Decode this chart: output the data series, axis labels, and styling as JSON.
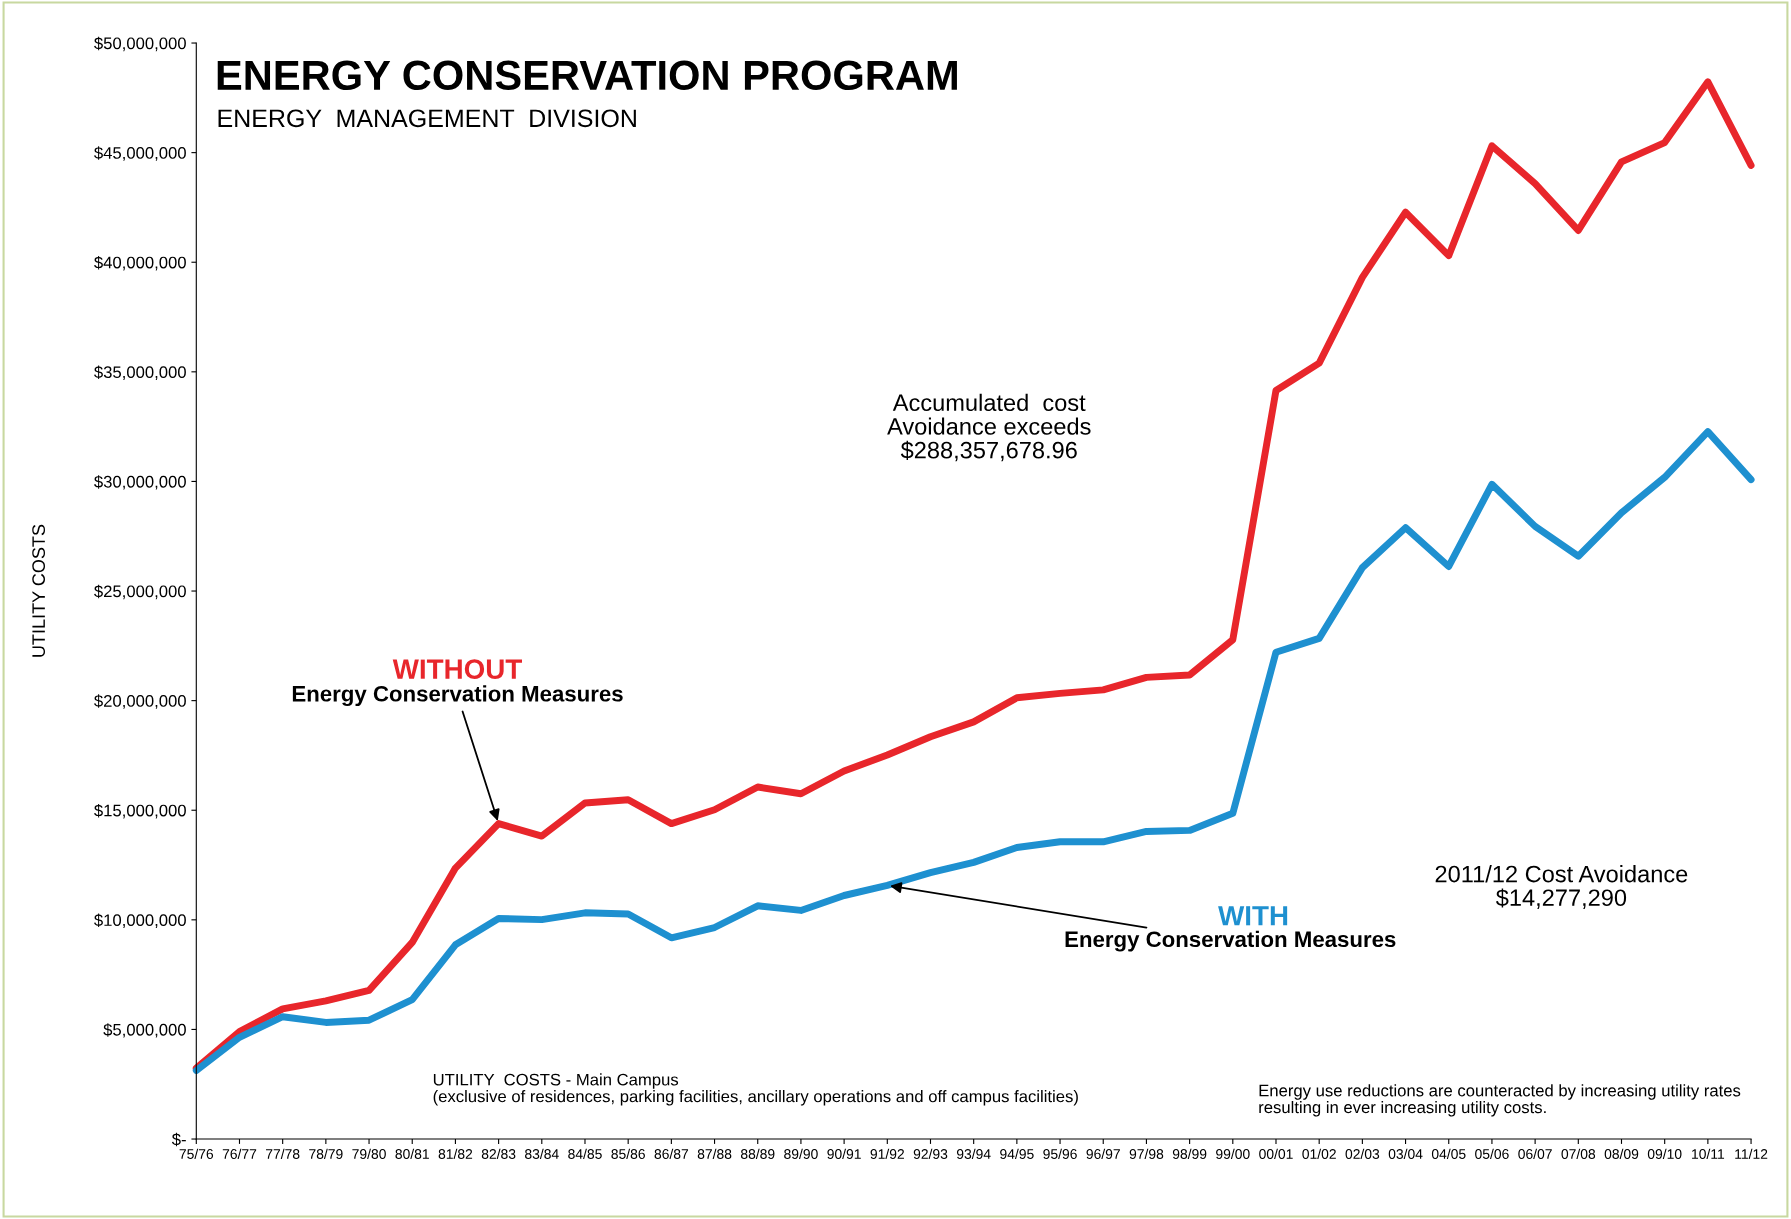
{
  "chart_data": {
    "type": "line",
    "title": "ENERGY CONSERVATION PROGRAM",
    "subtitle": "ENERGY  MANAGEMENT  DIVISION",
    "ylabel": "UTILITY COSTS",
    "categories": [
      "75/76",
      "76/77",
      "77/78",
      "78/79",
      "79/80",
      "80/81",
      "81/82",
      "82/83",
      "83/84",
      "84/85",
      "85/86",
      "86/87",
      "87/88",
      "88/89",
      "89/90",
      "90/91",
      "91/92",
      "92/93",
      "93/94",
      "94/95",
      "95/96",
      "96/97",
      "97/98",
      "98/99",
      "99/00",
      "00/01",
      "01/02",
      "02/03",
      "03/04",
      "04/05",
      "05/06",
      "06/07",
      "07/08",
      "08/09",
      "09/10",
      "10/11",
      "11/12"
    ],
    "series": [
      {
        "name": "WITHOUT",
        "color": "#e8262b",
        "values": [
          3230000,
          4900000,
          5940000,
          6300000,
          6780000,
          8970000,
          12360000,
          14390000,
          13820000,
          15330000,
          15480000,
          14390000,
          15020000,
          16060000,
          15750000,
          16790000,
          17520000,
          18350000,
          19030000,
          20130000,
          20330000,
          20490000,
          21060000,
          21170000,
          22780000,
          34150000,
          35400000,
          39310000,
          42280000,
          40300000,
          45310000,
          43590000,
          41450000,
          44580000,
          45460000,
          48230000,
          44420000
        ]
      },
      {
        "name": "WITH",
        "color": "#1e90d0",
        "values": [
          3130000,
          4640000,
          5580000,
          5320000,
          5420000,
          6360000,
          8860000,
          10060000,
          10010000,
          10320000,
          10270000,
          9180000,
          9650000,
          10640000,
          10430000,
          11110000,
          11570000,
          12150000,
          12620000,
          13300000,
          13560000,
          13560000,
          14030000,
          14080000,
          14860000,
          22210000,
          22840000,
          26070000,
          27890000,
          26120000,
          29870000,
          27950000,
          26590000,
          28570000,
          30190000,
          32270000,
          30080000
        ]
      }
    ],
    "ylim": [
      0,
      50000000
    ],
    "yticks": [
      {
        "value": 0,
        "label": "$-"
      },
      {
        "value": 5000000,
        "label": "$5,000,000"
      },
      {
        "value": 10000000,
        "label": "$10,000,000"
      },
      {
        "value": 15000000,
        "label": "$15,000,000"
      },
      {
        "value": 20000000,
        "label": "$20,000,000"
      },
      {
        "value": 25000000,
        "label": "$25,000,000"
      },
      {
        "value": 30000000,
        "label": "$30,000,000"
      },
      {
        "value": 35000000,
        "label": "$35,000,000"
      },
      {
        "value": 40000000,
        "label": "$40,000,000"
      },
      {
        "value": 45000000,
        "label": "$45,000,000"
      },
      {
        "value": 50000000,
        "label": "$50,000,000"
      }
    ],
    "grid": false,
    "marker": "none",
    "line_style": "solid",
    "annotations": [
      {
        "text": "Energy Conservation Measures",
        "x": "82/83",
        "y": 14390000
      },
      {
        "text": "Energy Conservation Measures",
        "x": "91/92",
        "y": 11570000
      },
      "Accumulated  cost\nAvoidance exceeds\n$288,357,678.96",
      "2011/12 Cost Avoidance\n$14,277,290",
      "UTILITY  COSTS - Main Campus\n(exclusive of residences, parking facilities, ancillary operations and off campus facilities)",
      "Energy use reductions are counteracted by increasing utility rates\nresulting in ever increasing utility costs."
    ]
  }
}
